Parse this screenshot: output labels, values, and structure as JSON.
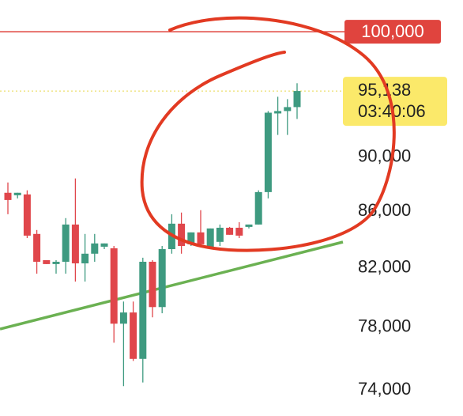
{
  "chart_data": {
    "type": "candlestick",
    "log_scale": true,
    "ylim": [
      72400,
      102700
    ],
    "yticks": [
      {
        "value": 74000,
        "label": "74,000"
      },
      {
        "value": 78000,
        "label": "78,000"
      },
      {
        "value": 82000,
        "label": "82,000"
      },
      {
        "value": 86000,
        "label": "86,000"
      },
      {
        "value": 90000,
        "label": "90,000"
      }
    ],
    "up_color": "#3e9a80",
    "down_color": "#e0464b",
    "open": [
      87340,
      87160,
      87220,
      84370,
      82530,
      82260,
      82420,
      85040,
      82310,
      82980,
      83470,
      83360,
      78240,
      78980,
      75960,
      82420,
      79340,
      83300,
      85100,
      83640,
      84480,
      83360,
      83810,
      84810,
      84810,
      84870,
      85040,
      87390,
      93360,
      93550,
      93860
    ],
    "high": [
      88100,
      87340,
      87520,
      84650,
      82530,
      82530,
      85500,
      88400,
      84370,
      84370,
      83700,
      83520,
      79710,
      79710,
      82700,
      82530,
      83520,
      85780,
      85900,
      84480,
      86070,
      84760,
      85040,
      84870,
      85210,
      85040,
      87520,
      93550,
      94680,
      94490,
      95760
    ],
    "low": [
      85780,
      86930,
      84080,
      81600,
      82260,
      81600,
      81600,
      81060,
      81060,
      82420,
      83300,
      77000,
      74240,
      75830,
      74470,
      78660,
      78930,
      82980,
      82980,
      83520,
      83520,
      83300,
      83520,
      84310,
      84080,
      84760,
      85040,
      86930,
      91690,
      91690,
      92930
    ],
    "close": [
      86810,
      87340,
      84250,
      82420,
      82260,
      82420,
      85040,
      82310,
      82980,
      83700,
      83700,
      78240,
      78980,
      75960,
      82420,
      79340,
      83300,
      85100,
      83520,
      84480,
      83640,
      84760,
      84810,
      84310,
      84250,
      85040,
      87390,
      93420,
      93550,
      93860,
      95138
    ],
    "hline": {
      "value": 100000,
      "label": "100,000",
      "color": "#e0443e"
    },
    "last_price": {
      "value": 95138,
      "label": "95,138",
      "time": "03:40:06",
      "color": "#fbe96a"
    }
  }
}
